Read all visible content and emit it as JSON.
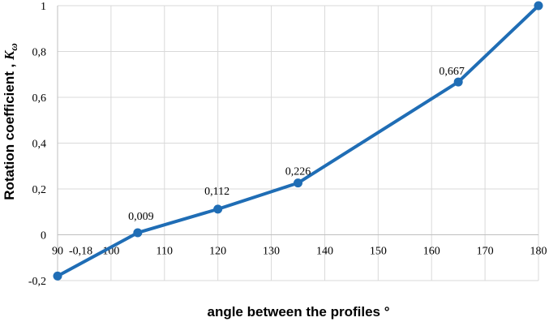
{
  "chart_data": {
    "type": "line",
    "xlabel": "angle between the profiles °",
    "ylabel_main": "Rotation coefficient , ",
    "ylabel_symbol": "K",
    "ylabel_subscript": "ω",
    "xlim": [
      90,
      180
    ],
    "ylim": [
      -0.2,
      1
    ],
    "x_ticks": [
      90,
      100,
      110,
      120,
      130,
      140,
      150,
      160,
      170,
      180
    ],
    "x_tick_labels": [
      "90",
      "100",
      "110",
      "120",
      "130",
      "140",
      "150",
      "160",
      "170",
      "180"
    ],
    "y_ticks": [
      -0.2,
      0,
      0.2,
      0.4,
      0.6,
      0.8,
      1
    ],
    "y_tick_labels": [
      "-0,2",
      "0",
      "0,2",
      "0,4",
      "0,6",
      "0,8",
      "1"
    ],
    "grid": true,
    "series": [
      {
        "color": "#1f6db5",
        "x": [
          90,
          105,
          120,
          135,
          165,
          180
        ],
        "y": [
          -0.18,
          0.009,
          0.112,
          0.226,
          0.667,
          1
        ],
        "data_labels": [
          "-0,18",
          "0,009",
          "0,112",
          "0,226",
          "0,667",
          ""
        ]
      }
    ]
  }
}
